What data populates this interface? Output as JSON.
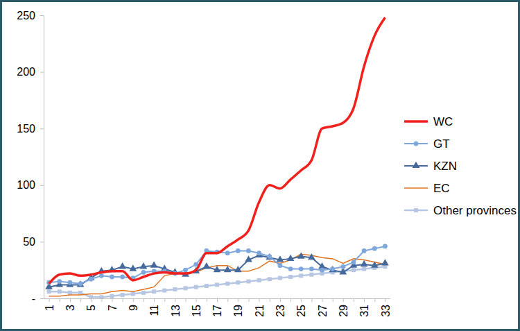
{
  "chart_data": {
    "type": "line",
    "categories": [
      "1",
      null,
      "3",
      null,
      "5",
      null,
      "7",
      null,
      "9",
      null,
      "11",
      null,
      "13",
      null,
      "15",
      null,
      "17",
      null,
      "19",
      null,
      "21",
      null,
      "23",
      null,
      "25",
      null,
      "27",
      null,
      "29",
      null,
      "31",
      null,
      "33"
    ],
    "ylim": [
      0,
      250
    ],
    "yticks": [
      {
        "value": 0,
        "label": "-"
      },
      50,
      100,
      150,
      200,
      250
    ],
    "grid": false,
    "legend": "right",
    "series": [
      {
        "name": "WC",
        "color": "#f0201c",
        "marker": "none",
        "line_style": "smooth",
        "values": [
          13,
          21,
          22,
          20,
          21,
          23,
          24,
          24,
          16,
          19,
          22,
          23,
          22,
          22,
          25,
          40,
          40,
          46,
          52,
          60,
          85,
          100,
          97,
          105,
          113,
          122,
          150,
          152,
          155,
          168,
          205,
          232,
          248
        ]
      },
      {
        "name": "GT",
        "color": "#7ea7dc",
        "marker": "circle",
        "line_style": "solid",
        "values": [
          14,
          15,
          14,
          13,
          17,
          20,
          19,
          19,
          18,
          23,
          24,
          24,
          22,
          25,
          30,
          42,
          41,
          40,
          42,
          42,
          40,
          37,
          29,
          26,
          26,
          26,
          25,
          26,
          28,
          32,
          42,
          44,
          46
        ]
      },
      {
        "name": "KZN",
        "color": "#46699c",
        "marker": "triangle",
        "line_style": "solid",
        "values": [
          10,
          12,
          12,
          12,
          18,
          24,
          25,
          28,
          26,
          28,
          29,
          26,
          23,
          21,
          24,
          28,
          25,
          25,
          25,
          34,
          38,
          36,
          34,
          35,
          37,
          36,
          28,
          25,
          23,
          29,
          30,
          29,
          31
        ]
      },
      {
        "name": "EC",
        "color": "#e0741f",
        "marker": "none",
        "line_style": "solid",
        "values": [
          2,
          2,
          3,
          3,
          4,
          4,
          6,
          7,
          6,
          8,
          10,
          20,
          22,
          22,
          23,
          27,
          29,
          29,
          24,
          24,
          27,
          33,
          31,
          34,
          39,
          38,
          36,
          35,
          31,
          35,
          34,
          32,
          30
        ]
      },
      {
        "name": "Other provinces",
        "color": "#b7c7e3",
        "marker": "square",
        "line_style": "solid",
        "values": [
          6,
          6,
          5,
          5,
          1,
          1,
          2,
          3,
          4,
          5,
          6,
          7,
          8,
          9,
          10,
          11,
          12,
          13,
          14,
          15,
          16,
          17,
          18,
          19,
          20,
          21,
          22,
          23,
          24,
          25,
          26,
          27,
          28
        ]
      }
    ]
  }
}
